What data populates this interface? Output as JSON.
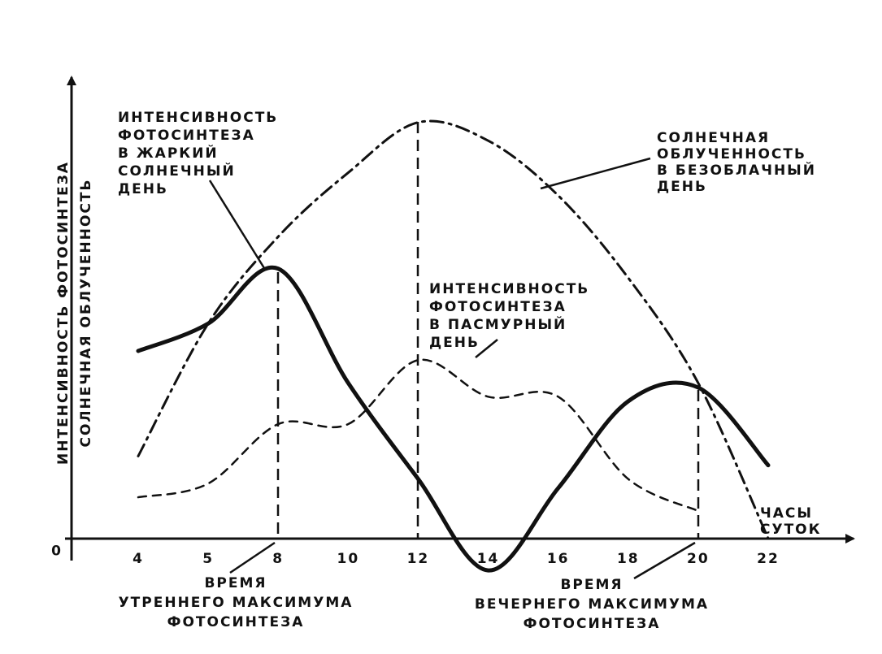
{
  "chart_data": {
    "type": "line",
    "ylabels": [
      "ИНТЕНСИВНОСТЬ ФОТОСИНТЕЗА",
      "СОЛНЕЧНАЯ ОБЛУЧЕННОСТЬ"
    ],
    "xlabel": [
      "ЧАСЫ",
      "СУТОК"
    ],
    "categories": [
      "4",
      "5",
      "8",
      "10",
      "12",
      "14",
      "16",
      "18",
      "20",
      "22"
    ],
    "ylim": [
      -10,
      100
    ],
    "yticks": [
      0
    ],
    "series": [
      {
        "style": "dashdot",
        "color": "#111111",
        "width": 3,
        "values": [
          18,
          47,
          66,
          80,
          91,
          87,
          75,
          57,
          34,
          0
        ]
      },
      {
        "style": "solid",
        "color": "#111111",
        "width": 5,
        "values": [
          41,
          47,
          59,
          34,
          13,
          -7,
          11,
          30,
          33,
          16
        ]
      },
      {
        "style": "dashed",
        "color": "#111111",
        "width": 2.5,
        "values": [
          9,
          12,
          25,
          25,
          39,
          31,
          31,
          13,
          6,
          null
        ]
      }
    ],
    "annotations": {
      "sunny_day": [
        "ИНТЕНСИВНОСТЬ",
        "ФОТОСИНТЕЗА",
        "В ЖАРКИЙ",
        "СОЛНЕЧНЫЙ",
        "ДЕНЬ"
      ],
      "irradiance": [
        "СОЛНЕЧНАЯ",
        "ОБЛУЧЕННОСТЬ",
        "В БЕЗОБЛАЧНЫЙ",
        "ДЕНЬ"
      ],
      "cloudy_day": [
        "ИНТЕНСИВНОСТЬ",
        "ФОТОСИНТЕЗА",
        "В ПАСМУРНЫЙ",
        "ДЕНЬ"
      ],
      "morning_max": [
        "ВРЕМЯ",
        "УТРЕННЕГО МАКСИМУМА",
        "ФОТОСИНТЕЗА"
      ],
      "evening_max": [
        "ВРЕМЯ",
        "ВЕЧЕРНЕГО МАКСИМУМА",
        "ФОТОСИНТЕЗА"
      ]
    }
  }
}
